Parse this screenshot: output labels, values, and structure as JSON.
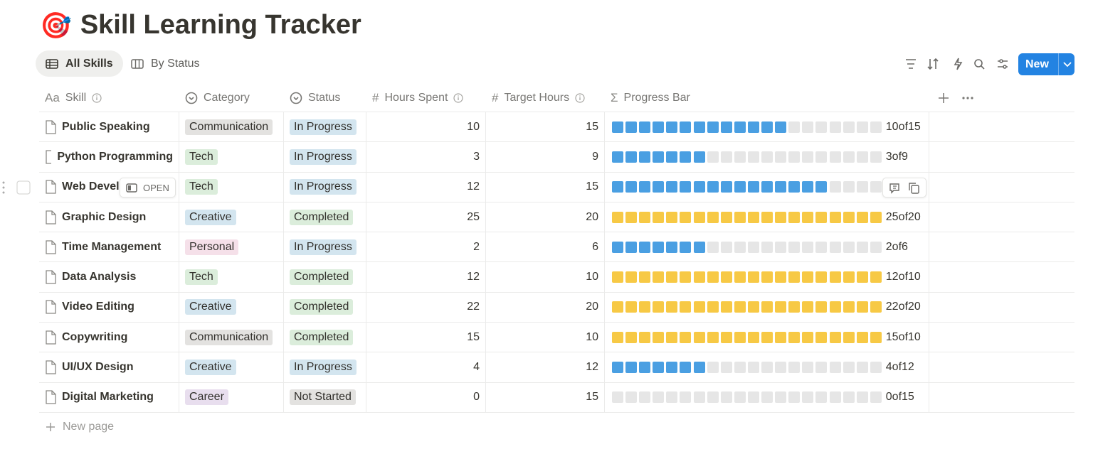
{
  "header": {
    "icon": "🎯",
    "title": "Skill Learning Tracker"
  },
  "views": [
    "All Skills",
    "By Status"
  ],
  "toolbar": {
    "new_button": "New"
  },
  "table": {
    "columns": [
      {
        "name": "Skill",
        "icon": "Aa"
      },
      {
        "name": "Category"
      },
      {
        "name": "Status"
      },
      {
        "name": "Hours Spent",
        "icon": "#"
      },
      {
        "name": "Target Hours",
        "icon": "#"
      },
      {
        "name": "Progress Bar",
        "icon": "Σ"
      }
    ],
    "rows": [
      {
        "skill": "Public Speaking",
        "category": "Communication",
        "status": "In Progress",
        "hours": 10,
        "target": 15,
        "progress": "10of15"
      },
      {
        "skill": "Python Programming",
        "category": "Tech",
        "status": "In Progress",
        "hours": 3,
        "target": 9,
        "progress": "3of9"
      },
      {
        "skill": "Web Devel",
        "category": "Tech",
        "status": "In Progress",
        "hours": 12,
        "target": 15,
        "progress": null
      },
      {
        "skill": "Graphic Design",
        "category": "Creative",
        "status": "Completed",
        "hours": 25,
        "target": 20,
        "progress": "25of20"
      },
      {
        "skill": "Time Management",
        "category": "Personal",
        "status": "In Progress",
        "hours": 2,
        "target": 6,
        "progress": "2of6"
      },
      {
        "skill": "Data Analysis",
        "category": "Tech",
        "status": "Completed",
        "hours": 12,
        "target": 10,
        "progress": "12of10"
      },
      {
        "skill": "Video Editing",
        "category": "Creative",
        "status": "Completed",
        "hours": 22,
        "target": 20,
        "progress": "22of20"
      },
      {
        "skill": "Copywriting",
        "category": "Communication",
        "status": "Completed",
        "hours": 15,
        "target": 10,
        "progress": "15of10"
      },
      {
        "skill": "UI/UX Design",
        "category": "Creative",
        "status": "In Progress",
        "hours": 4,
        "target": 12,
        "progress": "4of12"
      },
      {
        "skill": "Digital Marketing",
        "category": "Career",
        "status": "Not Started",
        "hours": 0,
        "target": 15,
        "progress": "0of15"
      }
    ],
    "tag_colors": {
      "Communication": "#e3e2e0",
      "Tech": "#dbeddb",
      "Creative": "#d3e5ef",
      "Personal": "#f5e0e9",
      "Career": "#e8deee",
      "In Progress": "#d3e5ef",
      "Completed": "#dbeddb",
      "Not Started": "#e3e2e0"
    },
    "progress_colors": {
      "below_target": "#4a9fe2",
      "reached": "#f7c945",
      "empty": "#e6e6e6"
    }
  },
  "row_actions": {
    "open": "OPEN"
  },
  "footer": {
    "new_page": "New page"
  }
}
